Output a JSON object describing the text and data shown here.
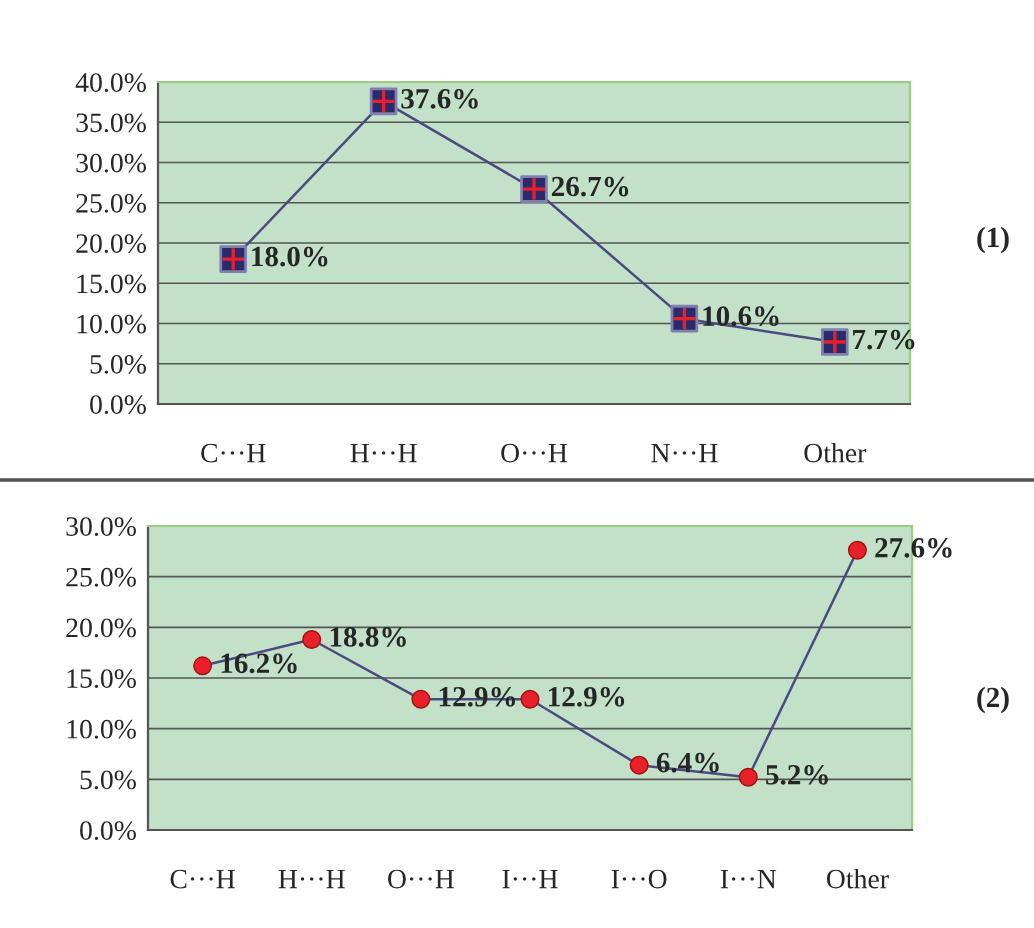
{
  "chart_data": [
    {
      "type": "line",
      "categories": [
        "C···H",
        "H···H",
        "O···H",
        "N···H",
        "Other"
      ],
      "series": [
        {
          "color": "#2b2b6b",
          "values": [
            18.0,
            37.6,
            26.7,
            10.6,
            7.7
          ],
          "value_labels": [
            "18.0%",
            "37.6%",
            "26.7%",
            "10.6%",
            "7.7%"
          ]
        }
      ],
      "ylim": [
        0,
        40
      ],
      "yticks": [
        {
          "value": 0,
          "label": "0.0%"
        },
        {
          "value": 5,
          "label": "5.0%"
        },
        {
          "value": 10,
          "label": "10.0%"
        },
        {
          "value": 15,
          "label": "15.0%"
        },
        {
          "value": 20,
          "label": "20.0%"
        },
        {
          "value": 25,
          "label": "25.0%"
        },
        {
          "value": 30,
          "label": "30.0%"
        },
        {
          "value": 35,
          "label": "35.0%"
        },
        {
          "value": 40,
          "label": "40.0%"
        }
      ],
      "grid": "y",
      "marker": "square",
      "line_style": "solid",
      "annotations": [
        "(1)"
      ]
    },
    {
      "type": "line",
      "categories": [
        "C···H",
        "H···H",
        "O···H",
        "I···H",
        "I···O",
        "I···N",
        "Other"
      ],
      "series": [
        {
          "color": "#e8202a",
          "values": [
            16.2,
            18.8,
            12.9,
            12.9,
            6.4,
            5.2,
            27.6
          ],
          "value_labels": [
            "16.2%",
            "18.8%",
            "12.9%",
            "12.9%",
            "6.4%",
            "5.2%",
            "27.6%"
          ]
        }
      ],
      "ylim": [
        0,
        30
      ],
      "yticks": [
        {
          "value": 0,
          "label": "0.0%"
        },
        {
          "value": 5,
          "label": "5.0%"
        },
        {
          "value": 10,
          "label": "10.0%"
        },
        {
          "value": 15,
          "label": "15.0%"
        },
        {
          "value": 20,
          "label": "20.0%"
        },
        {
          "value": 25,
          "label": "25.0%"
        },
        {
          "value": 30,
          "label": "30.0%"
        }
      ],
      "grid": "y",
      "marker": "circle",
      "line_style": "solid",
      "annotations": [
        "(2)"
      ]
    }
  ]
}
